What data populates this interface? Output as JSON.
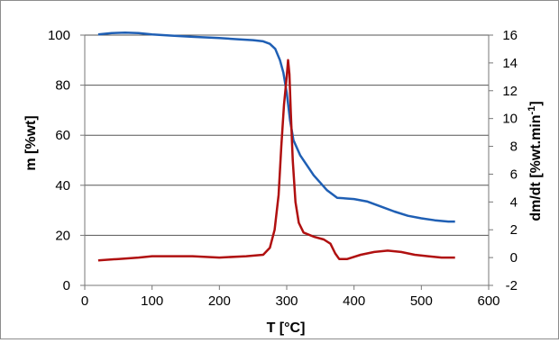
{
  "chart_data": {
    "type": "line",
    "title": "",
    "xlabel": "T [°C]",
    "ylabel": "m [%wt]",
    "y2label": "dm/dt [%wt.min",
    "y2label_sup": "-1",
    "y2label_end": "]",
    "xlim": [
      0,
      600
    ],
    "ylim": [
      0,
      100
    ],
    "y2lim": [
      -2,
      16
    ],
    "xticks": [
      0,
      100,
      200,
      300,
      400,
      500,
      600
    ],
    "yticks": [
      0,
      20,
      40,
      60,
      80,
      100
    ],
    "y2ticks": [
      -2,
      0,
      2,
      4,
      6,
      8,
      10,
      12,
      14,
      16
    ],
    "grid": "horizontal",
    "legend": "none",
    "series": [
      {
        "axis": "left",
        "color": "#1f5fb4",
        "points": [
          [
            20,
            100.3
          ],
          [
            40,
            100.8
          ],
          [
            60,
            101.0
          ],
          [
            80,
            100.8
          ],
          [
            100,
            100.3
          ],
          [
            130,
            99.8
          ],
          [
            160,
            99.3
          ],
          [
            200,
            98.8
          ],
          [
            230,
            98.3
          ],
          [
            250,
            98.0
          ],
          [
            265,
            97.5
          ],
          [
            275,
            96.5
          ],
          [
            283,
            94.5
          ],
          [
            290,
            90.0
          ],
          [
            295,
            85.0
          ],
          [
            300,
            77.0
          ],
          [
            305,
            66.0
          ],
          [
            310,
            58.0
          ],
          [
            320,
            52.0
          ],
          [
            340,
            44.0
          ],
          [
            360,
            38.0
          ],
          [
            375,
            35.0
          ],
          [
            400,
            34.5
          ],
          [
            420,
            33.5
          ],
          [
            440,
            31.5
          ],
          [
            460,
            29.5
          ],
          [
            480,
            27.8
          ],
          [
            500,
            26.8
          ],
          [
            520,
            26.0
          ],
          [
            540,
            25.5
          ],
          [
            550,
            25.5
          ]
        ]
      },
      {
        "axis": "right",
        "color": "#b01010",
        "points": [
          [
            20,
            -0.2
          ],
          [
            50,
            -0.1
          ],
          [
            80,
            0.0
          ],
          [
            100,
            0.1
          ],
          [
            130,
            0.1
          ],
          [
            160,
            0.1
          ],
          [
            200,
            0.0
          ],
          [
            240,
            0.1
          ],
          [
            265,
            0.2
          ],
          [
            275,
            0.7
          ],
          [
            282,
            2.0
          ],
          [
            288,
            4.5
          ],
          [
            292,
            8.0
          ],
          [
            296,
            11.0
          ],
          [
            300,
            13.0
          ],
          [
            302,
            14.2
          ],
          [
            304,
            13.2
          ],
          [
            306,
            10.5
          ],
          [
            309,
            7.0
          ],
          [
            313,
            4.0
          ],
          [
            318,
            2.5
          ],
          [
            325,
            1.8
          ],
          [
            340,
            1.5
          ],
          [
            355,
            1.3
          ],
          [
            365,
            1.0
          ],
          [
            372,
            0.3
          ],
          [
            378,
            -0.1
          ],
          [
            390,
            -0.1
          ],
          [
            410,
            0.2
          ],
          [
            430,
            0.4
          ],
          [
            450,
            0.5
          ],
          [
            470,
            0.4
          ],
          [
            490,
            0.2
          ],
          [
            510,
            0.1
          ],
          [
            530,
            0.0
          ],
          [
            550,
            0.0
          ]
        ]
      }
    ]
  }
}
